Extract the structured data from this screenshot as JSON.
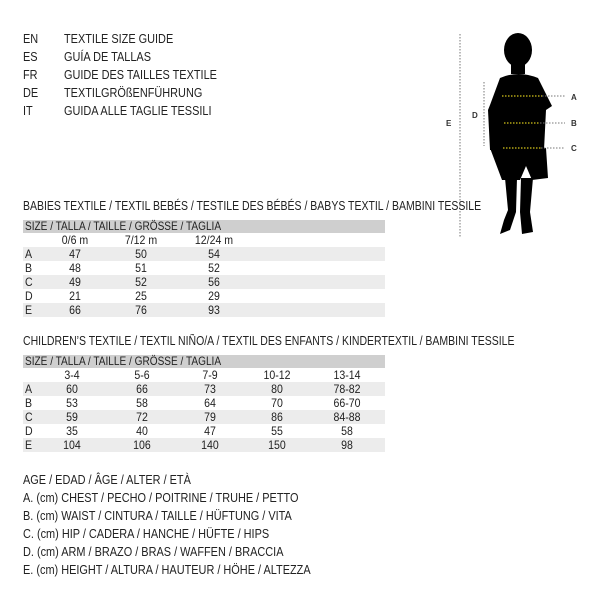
{
  "languages": [
    {
      "code": "EN",
      "title": "TEXTILE SIZE GUIDE"
    },
    {
      "code": "ES",
      "title": "GUÍA DE TALLAS"
    },
    {
      "code": "FR",
      "title": "GUIDE DES TAILLES TEXTILE"
    },
    {
      "code": "DE",
      "title": "TEXTILGRÖßENFÜHRUNG"
    },
    {
      "code": "IT",
      "title": "GUIDA ALLE TAGLIE TESSILI"
    }
  ],
  "figure": {
    "labels": {
      "a": "A",
      "b": "B",
      "c": "C",
      "d": "D",
      "e": "E"
    },
    "accent": "#d4c21a"
  },
  "babies": {
    "title": "BABIES TEXTILE / TEXTIL BEBÉS / TESTILE DES BÉBÉS / BABYS TEXTIL / BAMBINI TESSILE",
    "header": "SIZE / TALLA / TAILLE / GRÖSSE / TAGLIA",
    "columns": [
      "0/6 m",
      "7/12 m",
      "12/24 m"
    ],
    "rows": [
      {
        "label": "A",
        "values": [
          "47",
          "50",
          "54"
        ]
      },
      {
        "label": "B",
        "values": [
          "48",
          "51",
          "52"
        ]
      },
      {
        "label": "C",
        "values": [
          "49",
          "52",
          "56"
        ]
      },
      {
        "label": "D",
        "values": [
          "21",
          "25",
          "29"
        ]
      },
      {
        "label": "E",
        "values": [
          "66",
          "76",
          "93"
        ]
      }
    ]
  },
  "children": {
    "title": "CHILDREN’S TEXTILE / TEXTIL NIÑO/A / TEXTIL DES ENFANTS / KINDERTEXTIL / BAMBINI TESSILE",
    "header": "SIZE / TALLA / TAILLE / GRÖSSE / TAGLIA",
    "columns": [
      "3-4",
      "5-6",
      "7-9",
      "10-12",
      "13-14"
    ],
    "rows": [
      {
        "label": "A",
        "values": [
          "60",
          "66",
          "73",
          "80",
          "78-82"
        ]
      },
      {
        "label": "B",
        "values": [
          "53",
          "58",
          "64",
          "70",
          "66-70"
        ]
      },
      {
        "label": "C",
        "values": [
          "59",
          "72",
          "79",
          "86",
          "84-88"
        ]
      },
      {
        "label": "D",
        "values": [
          "35",
          "40",
          "47",
          "55",
          "58"
        ]
      },
      {
        "label": "E",
        "values": [
          "104",
          "106",
          "140",
          "150",
          "98"
        ]
      }
    ]
  },
  "legend": [
    "AGE / EDAD / ÂGE / ALTER / ETÀ",
    "A. (cm) CHEST / PECHO / POITRINE / TRUHE / PETTO",
    "B. (cm) WAIST / CINTURA / TAILLE / HÜFTUNG / VITA",
    "C. (cm) HIP / CADERA / HANCHE / HÜFTE / HIPS",
    "D. (cm) ARM / BRAZO / BRAS / WAFFEN / BRACCIA",
    "E. (cm) HEIGHT / ALTURA / HAUTEUR / HÖHE / ALTEZZA"
  ]
}
